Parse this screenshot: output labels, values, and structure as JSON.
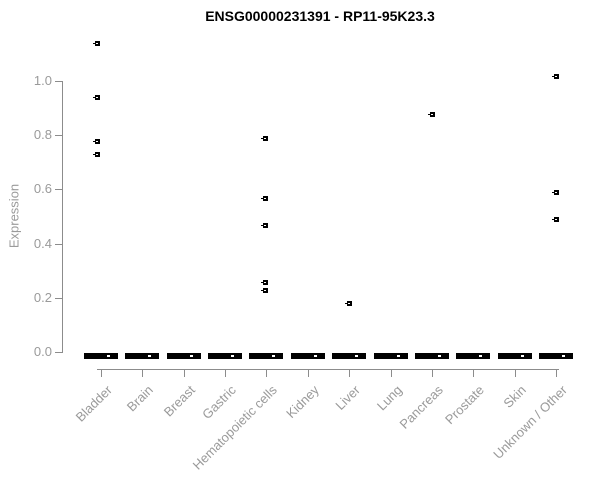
{
  "chart_data": {
    "type": "scatter",
    "title": "ENSG00000231391 - RP11-95K23.3",
    "ylabel": "Expression",
    "xlabel": "",
    "ylim": [
      0.0,
      1.14
    ],
    "yticks": [
      0.0,
      0.2,
      0.4,
      0.6,
      0.8,
      1.0
    ],
    "ytick_labels": [
      "0.0",
      "0.2",
      "0.4",
      "0.6",
      "0.8",
      "1.0"
    ],
    "categories": [
      "Bladder",
      "Brain",
      "Breast",
      "Gastric",
      "Hematopoietic cells",
      "Kidney",
      "Liver",
      "Lung",
      "Pancreas",
      "Prostate",
      "Skin",
      "Unknown / Other"
    ],
    "grid": false,
    "legend": "none",
    "marker": "small black open square",
    "zero_cluster_all_categories": true,
    "zero_cluster_value": 0.0,
    "series": [
      {
        "name": "Bladder",
        "values": [
          1.14,
          0.94,
          0.78,
          0.73
        ],
        "x_offset": -4
      },
      {
        "name": "Brain",
        "values": [],
        "x_offset": 0
      },
      {
        "name": "Breast",
        "values": [],
        "x_offset": 0
      },
      {
        "name": "Gastric",
        "values": [],
        "x_offset": 0
      },
      {
        "name": "Hematopoietic cells",
        "values": [
          0.79,
          0.57,
          0.47,
          0.26,
          0.23
        ],
        "x_offset": -1
      },
      {
        "name": "Kidney",
        "values": [],
        "x_offset": 0
      },
      {
        "name": "Liver",
        "values": [
          0.18
        ],
        "x_offset": 0
      },
      {
        "name": "Lung",
        "values": [],
        "x_offset": 0
      },
      {
        "name": "Pancreas",
        "values": [
          0.88
        ],
        "x_offset": 0
      },
      {
        "name": "Prostate",
        "values": [],
        "x_offset": 0
      },
      {
        "name": "Skin",
        "values": [],
        "x_offset": 0
      },
      {
        "name": "Unknown / Other",
        "values": [
          1.02,
          0.59,
          0.49
        ],
        "x_offset": 0
      }
    ],
    "colors": {
      "points": "#000000",
      "title_text": "#000000",
      "axis_lines": "#8c8c8c",
      "axis_text": "#9a9a9a",
      "background": "#ffffff"
    }
  }
}
